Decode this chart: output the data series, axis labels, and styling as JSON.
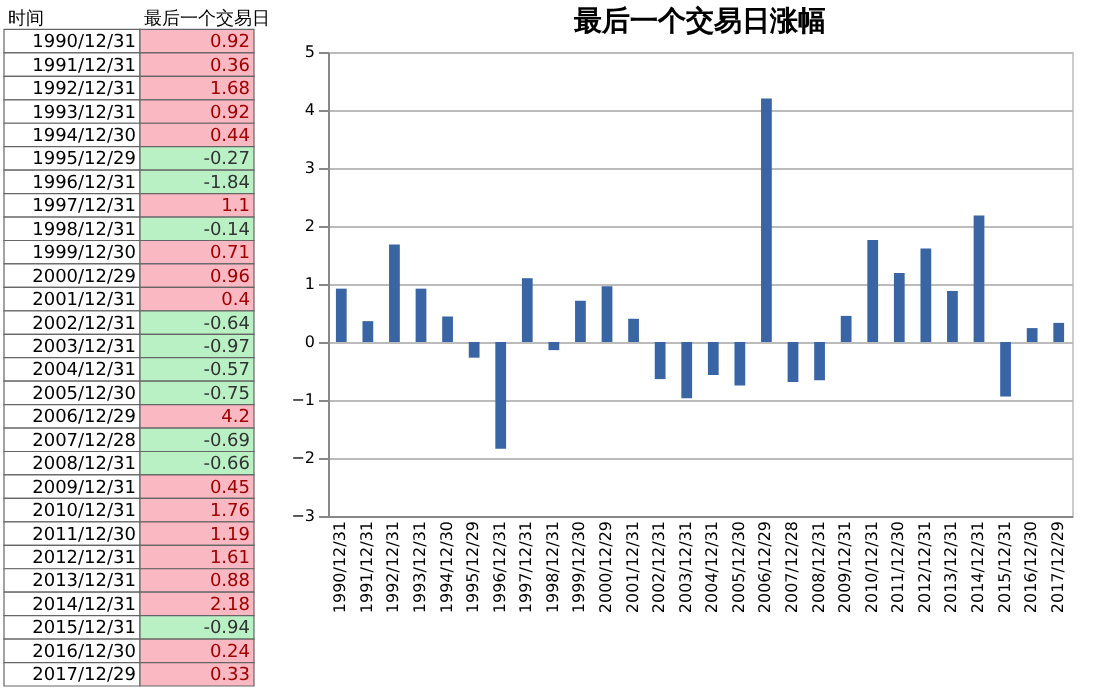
{
  "chart_data": [
    {
      "type": "heatmap",
      "ylabel": "时间",
      "categories": [
        "最后一个交易日"
      ],
      "data_labels": true,
      "y_categories": [
        "1990/12/31",
        "1991/12/31",
        "1992/12/31",
        "1993/12/31",
        "1994/12/30",
        "1995/12/29",
        "1996/12/31",
        "1997/12/31",
        "1998/12/31",
        "1999/12/30",
        "2000/12/29",
        "2001/12/31",
        "2002/12/31",
        "2003/12/31",
        "2004/12/31",
        "2005/12/30",
        "2006/12/29",
        "2007/12/28",
        "2008/12/31",
        "2009/12/31",
        "2010/12/31",
        "2011/12/30",
        "2012/12/31",
        "2013/12/31",
        "2014/12/31",
        "2015/12/31",
        "2016/12/30",
        "2017/12/29"
      ],
      "cells": [
        [
          0.92
        ],
        [
          0.36
        ],
        [
          1.68
        ],
        [
          0.92
        ],
        [
          0.44
        ],
        [
          -0.27
        ],
        [
          -1.84
        ],
        [
          1.1
        ],
        [
          -0.14
        ],
        [
          0.71
        ],
        [
          0.96
        ],
        [
          0.4
        ],
        [
          -0.64
        ],
        [
          -0.97
        ],
        [
          -0.57
        ],
        [
          -0.75
        ],
        [
          4.2
        ],
        [
          -0.69
        ],
        [
          -0.66
        ],
        [
          0.45
        ],
        [
          1.76
        ],
        [
          1.19
        ],
        [
          1.61
        ],
        [
          0.88
        ],
        [
          2.18
        ],
        [
          -0.94
        ],
        [
          0.24
        ],
        [
          0.33
        ]
      ]
    },
    {
      "type": "bar",
      "title": "最后一个交易日涨幅",
      "categories": [
        "1990/12/31",
        "1991/12/31",
        "1992/12/31",
        "1993/12/31",
        "1994/12/30",
        "1995/12/29",
        "1996/12/31",
        "1997/12/31",
        "1998/12/31",
        "1999/12/30",
        "2000/12/29",
        "2001/12/31",
        "2002/12/31",
        "2003/12/31",
        "2004/12/31",
        "2005/12/30",
        "2006/12/29",
        "2007/12/28",
        "2008/12/31",
        "2009/12/31",
        "2010/12/31",
        "2011/12/30",
        "2012/12/31",
        "2013/12/31",
        "2014/12/31",
        "2015/12/31",
        "2016/12/30",
        "2017/12/29"
      ],
      "values": [
        0.92,
        0.36,
        1.68,
        0.92,
        0.44,
        -0.27,
        -1.84,
        1.1,
        -0.14,
        0.71,
        0.96,
        0.4,
        -0.64,
        -0.97,
        -0.57,
        -0.75,
        4.2,
        -0.69,
        -0.66,
        0.45,
        1.76,
        1.19,
        1.61,
        0.88,
        2.18,
        -0.94,
        0.24,
        0.33
      ],
      "color": "#3a65a5",
      "ylim": [
        -3,
        5
      ],
      "yticks": [
        -3,
        -2,
        -1,
        0,
        1,
        2,
        3,
        4,
        5
      ],
      "grid": "y"
    }
  ]
}
